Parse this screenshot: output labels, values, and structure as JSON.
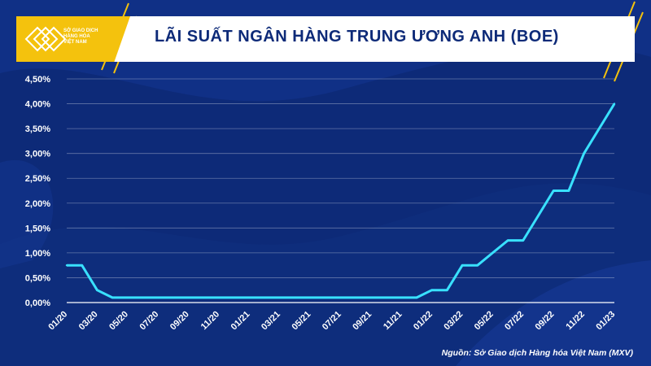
{
  "header": {
    "title": "LÃI SUẤT NGÂN HÀNG TRUNG ƯƠNG ANH (BOE)",
    "logo_lines": [
      "SỞ GIAO DỊCH",
      "HÀNG HÓA",
      "VIỆT NAM"
    ]
  },
  "source": "Nguồn: Sở Giao dịch Hàng hóa Việt Nam (MXV)",
  "colors": {
    "background": "#0d2a78",
    "line": "#39e1ff",
    "accent": "#f4c20d",
    "title": "#0d2a78"
  },
  "chart_data": {
    "type": "line",
    "title": "LÃI SUẤT NGÂN HÀNG TRUNG ƯƠNG ANH (BOE)",
    "xlabel": "",
    "ylabel": "",
    "ylim": [
      0,
      4.5
    ],
    "yticks": [
      "0,00%",
      "0,50%",
      "1,00%",
      "1,50%",
      "2,00%",
      "2,50%",
      "3,00%",
      "3,50%",
      "4,00%",
      "4,50%"
    ],
    "xtick_labels": [
      "01/20",
      "03/20",
      "05/20",
      "07/20",
      "09/20",
      "11/20",
      "01/21",
      "03/21",
      "05/21",
      "07/21",
      "09/21",
      "11/21",
      "01/22",
      "03/22",
      "05/22",
      "07/22",
      "09/22",
      "11/22",
      "01/23"
    ],
    "grid": true,
    "series": [
      {
        "values": [
          0.75,
          0.75,
          0.25,
          0.1,
          0.1,
          0.1,
          0.1,
          0.1,
          0.1,
          0.1,
          0.1,
          0.1,
          0.1,
          0.1,
          0.1,
          0.1,
          0.1,
          0.1,
          0.1,
          0.1,
          0.1,
          0.1,
          0.1,
          0.1,
          0.25,
          0.25,
          0.75,
          0.75,
          1.0,
          1.25,
          1.25,
          1.75,
          2.25,
          2.25,
          3.0,
          3.5,
          4.0
        ]
      }
    ]
  }
}
